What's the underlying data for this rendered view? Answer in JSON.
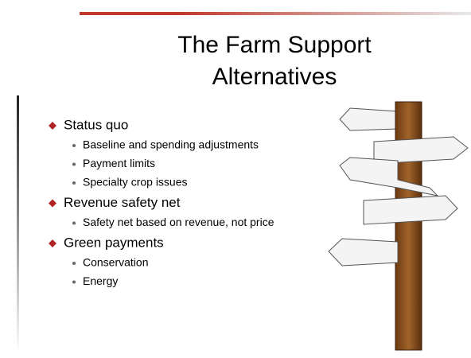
{
  "slide": {
    "title_lines": [
      "The Farm Support",
      "Alternatives"
    ],
    "bullets": [
      {
        "text": "Status quo",
        "subitems": [
          "Baseline and spending adjustments",
          "Payment limits",
          "Specialty crop issues"
        ]
      },
      {
        "text": "Revenue safety net",
        "subitems": [
          "Safety net based on revenue, not price"
        ]
      },
      {
        "text": "Green payments",
        "subitems": [
          "Conservation",
          "Energy"
        ]
      }
    ]
  }
}
